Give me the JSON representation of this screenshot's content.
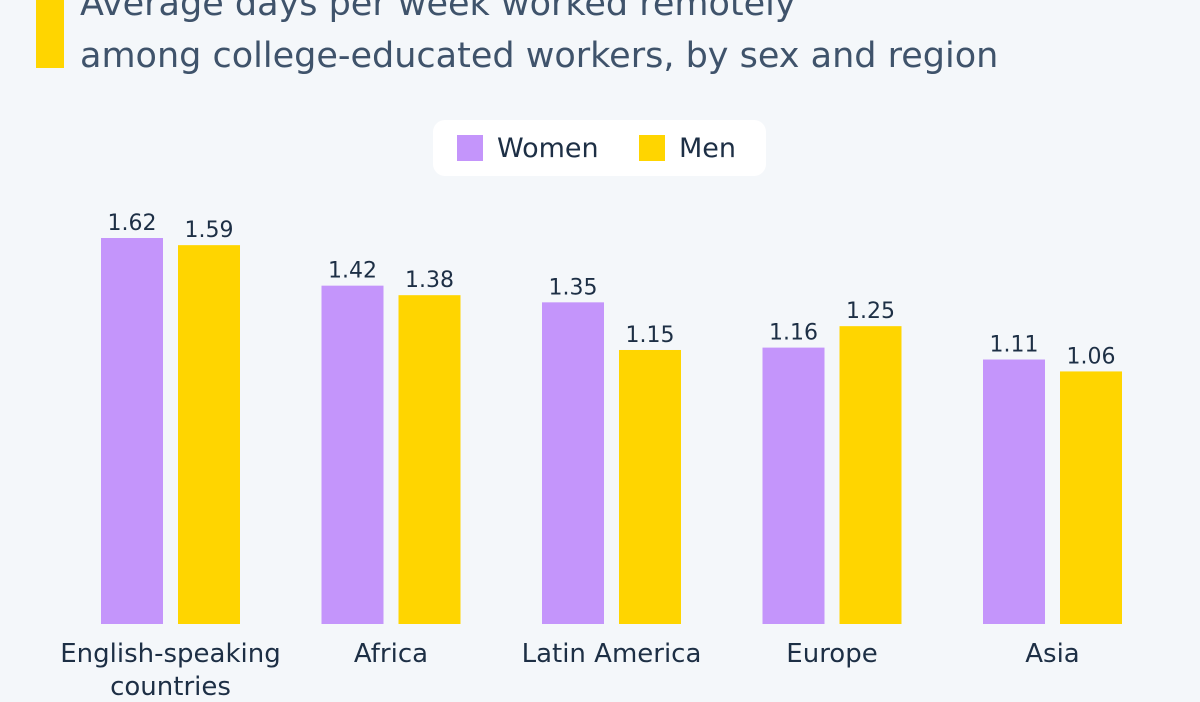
{
  "title": {
    "line1": "Average days per week worked remotely",
    "line2": "among college-educated workers, by sex and region"
  },
  "colors": {
    "women": "#c495fb",
    "men": "#ffd500",
    "accent": "#ffd500",
    "background": "#f4f7fa"
  },
  "legend": {
    "women_label": "Women",
    "men_label": "Men"
  },
  "chart_data": {
    "type": "bar",
    "categories": [
      [
        "English-speaking",
        "countries"
      ],
      [
        "Africa"
      ],
      [
        "Latin America"
      ],
      [
        "Europe"
      ],
      [
        "Asia"
      ]
    ],
    "series": [
      {
        "name": "Women",
        "color": "#c495fb",
        "values": [
          1.62,
          1.42,
          1.35,
          1.16,
          1.11
        ]
      },
      {
        "name": "Men",
        "color": "#ffd500",
        "values": [
          1.59,
          1.38,
          1.15,
          1.25,
          1.06
        ]
      }
    ],
    "ylim": [
      0,
      1.62
    ],
    "grid": false,
    "legend_position": "top-center"
  }
}
